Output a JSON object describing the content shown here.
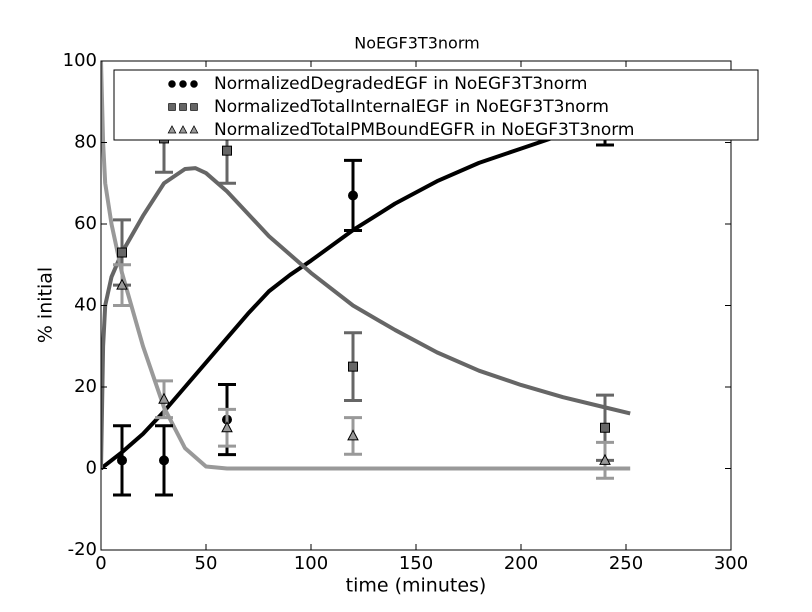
{
  "chart_data": {
    "type": "line",
    "title": "NoEGF3T3norm",
    "x_label": "time (minutes)",
    "y_label": "% initial",
    "xlim": [
      0,
      300
    ],
    "ylim": [
      -20,
      100
    ],
    "xticks": [
      0,
      50,
      100,
      150,
      200,
      250,
      300
    ],
    "yticks": [
      -20,
      0,
      20,
      40,
      60,
      80,
      100
    ],
    "legend_position": "top",
    "series": [
      {
        "color": "#000000",
        "x": [
          0,
          10,
          20,
          30,
          40,
          50,
          60,
          70,
          80,
          90,
          100,
          120,
          140,
          160,
          180,
          200,
          220,
          240,
          252
        ],
        "values": [
          0,
          4,
          8.5,
          14,
          20,
          26,
          32,
          38,
          43.5,
          47.5,
          51,
          58.5,
          65,
          70.5,
          75,
          78.5,
          82,
          86,
          88
        ]
      },
      {
        "color": "#666666",
        "x": [
          0,
          1,
          2,
          5,
          10,
          20,
          30,
          40,
          45,
          50,
          60,
          80,
          100,
          120,
          140,
          160,
          180,
          200,
          220,
          240,
          252
        ],
        "values": [
          0,
          30,
          40,
          47,
          53,
          62,
          70,
          73.5,
          73.7,
          72.5,
          68,
          57,
          48,
          40,
          34,
          28.5,
          24,
          20.5,
          17.5,
          15,
          13.5
        ]
      },
      {
        "color": "#999999",
        "x": [
          0,
          1,
          2,
          5,
          10,
          20,
          30,
          40,
          50,
          60,
          100,
          150,
          200,
          252
        ],
        "values": [
          100,
          80,
          70,
          60,
          48,
          30,
          15,
          5,
          0.5,
          0,
          0,
          0,
          0,
          0
        ]
      },
      {
        "name": "NormalizedDegradedEGF in NoEGF3T3norm",
        "color": "#000000",
        "marker": "circle",
        "x": [
          10,
          30,
          60,
          120,
          240
        ],
        "values": [
          2,
          2,
          12,
          67,
          88
        ],
        "errors": [
          8.5,
          8.5,
          8.6,
          8.6,
          8.6
        ]
      },
      {
        "name": "NormalizedTotalInternalEGF in NoEGF3T3norm",
        "color": "#666666",
        "marker": "square",
        "x": [
          10,
          30,
          60,
          120,
          240
        ],
        "values": [
          53,
          81,
          78,
          25,
          10
        ],
        "errors": [
          8,
          8.3,
          8,
          8.3,
          8
        ]
      },
      {
        "name": "NormalizedTotalPMBoundEGFR in NoEGF3T3norm",
        "color": "#999999",
        "marker": "triangle",
        "x": [
          10,
          30,
          60,
          120,
          240
        ],
        "values": [
          45,
          17,
          10,
          8,
          2
        ],
        "errors": [
          5,
          4.5,
          4.5,
          4.5,
          4.4
        ]
      }
    ]
  }
}
